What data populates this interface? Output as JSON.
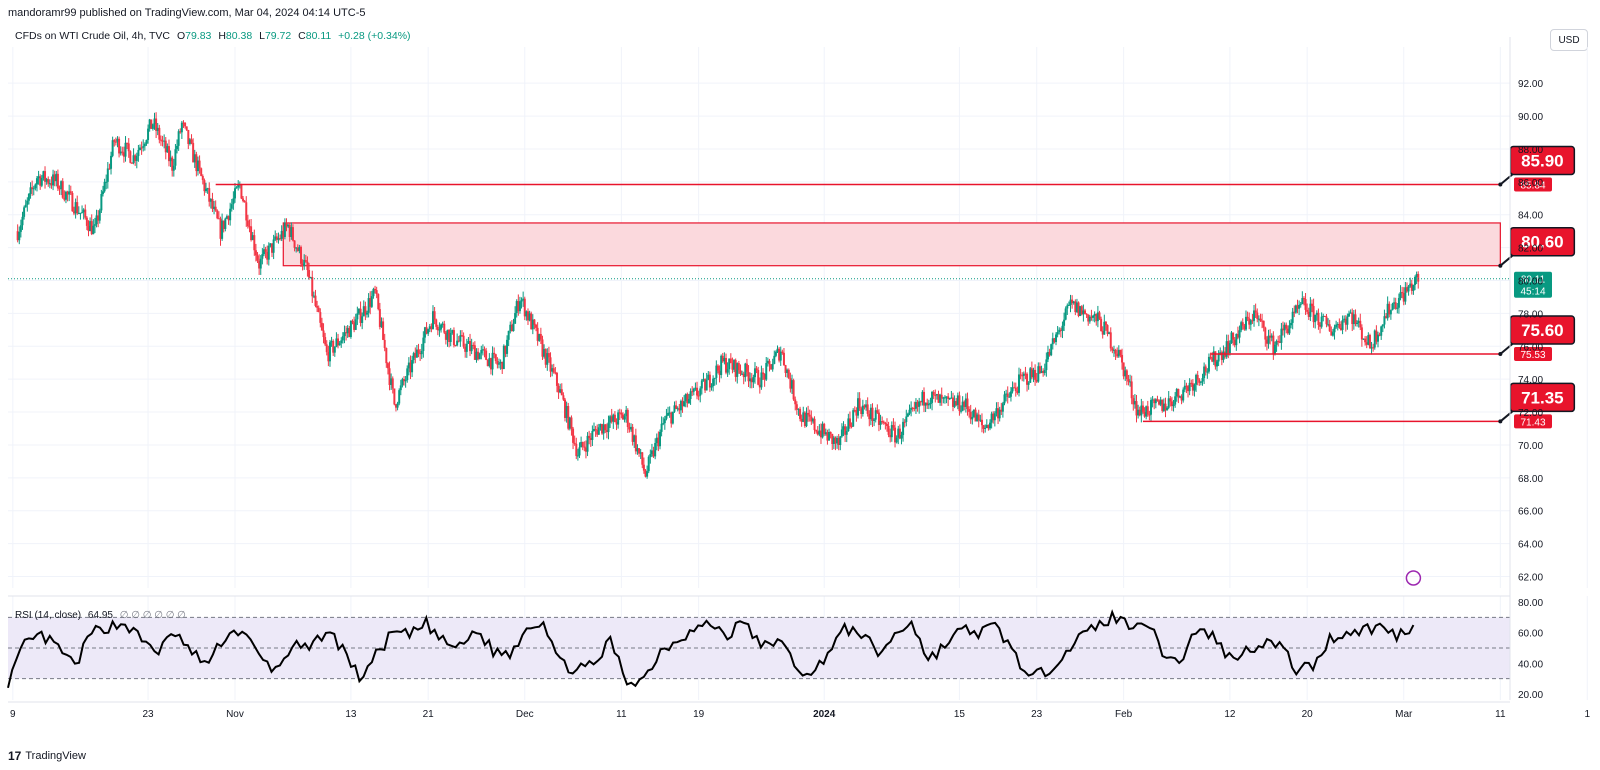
{
  "header": {
    "published_line": "mandoramr99 published on TradingView.com, Mar 04, 2024 04:14 UTC-5"
  },
  "legend": {
    "symbol": "CFDs on WTI Crude Oil, 4h, TVC",
    "open_label": "O",
    "open": "79.83",
    "high_label": "H",
    "high": "80.38",
    "low_label": "L",
    "low": "79.72",
    "close_label": "C",
    "close": "80.11",
    "change": "+0.28 (+0.34%)"
  },
  "currency": "USD",
  "rsi_legend": {
    "label": "RSI (14, close)",
    "value": "64.95",
    "extras": "∅ ∅ ∅ ∅ ∅ ∅"
  },
  "footer": {
    "brand": "TradingView",
    "logo": "17"
  },
  "colors": {
    "up": "#089981",
    "down": "#f23645",
    "level": "#e8142c",
    "zone_fill": "#fbd9dd",
    "rsi_band": "#ede9f8",
    "rsi_line": "#000000"
  },
  "chart_data": {
    "type": "candlestick",
    "price_axis": {
      "min": 62,
      "max": 94,
      "ticks": [
        "62.00",
        "64.00",
        "66.00",
        "68.00",
        "70.00",
        "72.00",
        "74.00",
        "76.00",
        "78.00",
        "80.00",
        "82.00",
        "84.00",
        "86.00",
        "88.00",
        "90.00",
        "92.00"
      ]
    },
    "time_axis": {
      "ticks": [
        "9",
        "23",
        "Nov",
        "13",
        "21",
        "Dec",
        "11",
        "19",
        "2024",
        "15",
        "23",
        "Feb",
        "12",
        "20",
        "Mar",
        "11",
        "1"
      ]
    },
    "price_path_keypoints": [
      {
        "t": "2023-10-09",
        "close": 83.0
      },
      {
        "t": "2023-10-11",
        "close": 86.3
      },
      {
        "t": "2023-10-13",
        "close": 86.0
      },
      {
        "t": "2023-10-17",
        "close": 83.0
      },
      {
        "t": "2023-10-19",
        "close": 88.5
      },
      {
        "t": "2023-10-21",
        "close": 87.5
      },
      {
        "t": "2023-10-23",
        "close": 89.6
      },
      {
        "t": "2023-10-25",
        "close": 87.0
      },
      {
        "t": "2023-10-26",
        "close": 89.5
      },
      {
        "t": "2023-10-30",
        "close": 83.0
      },
      {
        "t": "2023-11-01",
        "close": 85.8
      },
      {
        "t": "2023-11-03",
        "close": 81.0
      },
      {
        "t": "2023-11-06",
        "close": 83.3
      },
      {
        "t": "2023-11-08",
        "close": 80.5
      },
      {
        "t": "2023-11-10",
        "close": 75.5
      },
      {
        "t": "2023-11-13",
        "close": 77.5
      },
      {
        "t": "2023-11-15",
        "close": 79.2
      },
      {
        "t": "2023-11-17",
        "close": 72.5
      },
      {
        "t": "2023-11-21",
        "close": 77.8
      },
      {
        "t": "2023-11-23",
        "close": 76.5
      },
      {
        "t": "2023-11-28",
        "close": 74.8
      },
      {
        "t": "2023-11-30",
        "close": 79.0
      },
      {
        "t": "2023-12-04",
        "close": 73.5
      },
      {
        "t": "2023-12-06",
        "close": 69.5
      },
      {
        "t": "2023-12-08",
        "close": 71.0
      },
      {
        "t": "2023-12-11",
        "close": 71.8
      },
      {
        "t": "2023-12-13",
        "close": 68.2
      },
      {
        "t": "2023-12-15",
        "close": 71.5
      },
      {
        "t": "2023-12-19",
        "close": 73.5
      },
      {
        "t": "2023-12-21",
        "close": 75.0
      },
      {
        "t": "2023-12-25",
        "close": 74.0
      },
      {
        "t": "2023-12-27",
        "close": 75.8
      },
      {
        "t": "2023-12-29",
        "close": 71.8
      },
      {
        "t": "2024-01-02",
        "close": 70.0
      },
      {
        "t": "2024-01-04",
        "close": 72.5
      },
      {
        "t": "2024-01-08",
        "close": 70.5
      },
      {
        "t": "2024-01-11",
        "close": 73.0
      },
      {
        "t": "2024-01-13",
        "close": 72.5
      },
      {
        "t": "2024-01-15",
        "close": 72.5
      },
      {
        "t": "2024-01-17",
        "close": 71.0
      },
      {
        "t": "2024-01-21",
        "close": 74.0
      },
      {
        "t": "2024-01-23",
        "close": 74.5
      },
      {
        "t": "2024-01-26",
        "close": 78.5
      },
      {
        "t": "2024-01-29",
        "close": 77.5
      },
      {
        "t": "2024-01-31",
        "close": 75.5
      },
      {
        "t": "2024-02-02",
        "close": 72.0
      },
      {
        "t": "2024-02-05",
        "close": 72.5
      },
      {
        "t": "2024-02-08",
        "close": 74.0
      },
      {
        "t": "2024-02-12",
        "close": 76.5
      },
      {
        "t": "2024-02-14",
        "close": 78.0
      },
      {
        "t": "2024-02-16",
        "close": 76.0
      },
      {
        "t": "2024-02-19",
        "close": 78.5
      },
      {
        "t": "2024-02-22",
        "close": 77.0
      },
      {
        "t": "2024-02-24",
        "close": 78.0
      },
      {
        "t": "2024-02-26",
        "close": 76.0
      },
      {
        "t": "2024-02-28",
        "close": 78.3
      },
      {
        "t": "2024-03-01",
        "close": 79.5
      },
      {
        "t": "2024-03-02",
        "close": 80.11
      }
    ],
    "levels": [
      {
        "label": "85.90",
        "axis_value": 85.84,
        "axis_label": "85.84",
        "from": "2023-10-30"
      },
      {
        "label": "80.60",
        "axis_value": 80.9,
        "from": "2023-11-06"
      },
      {
        "label": "75.60",
        "axis_value": 75.53,
        "axis_label": "75.53",
        "from": "2024-02-10"
      },
      {
        "label": "71.35",
        "axis_value": 71.43,
        "axis_label": "71.43",
        "from": "2024-02-03"
      }
    ],
    "zone": {
      "from": "2023-11-06",
      "to": "2024-03-11",
      "low": 80.9,
      "high": 83.5
    },
    "last_price": {
      "value": "80.11",
      "countdown": "45:14"
    },
    "rsi": {
      "ticks": [
        "20.00",
        "40.00",
        "60.00",
        "80.00"
      ],
      "band": [
        30,
        70
      ],
      "ylim": [
        16,
        84
      ],
      "keypoints": [
        28,
        52,
        58,
        50,
        38,
        60,
        64,
        66,
        55,
        48,
        60,
        46,
        40,
        58,
        62,
        44,
        35,
        52,
        48,
        62,
        50,
        30,
        45,
        60,
        58,
        66,
        54,
        50,
        62,
        48,
        46,
        64,
        68,
        40,
        36,
        38,
        55,
        28,
        30,
        48,
        56,
        62,
        66,
        58,
        68,
        50,
        56,
        40,
        30,
        48,
        62,
        60,
        46,
        58,
        68,
        42,
        52,
        62,
        60,
        64,
        50,
        30,
        34,
        46,
        56,
        64,
        70,
        66,
        68,
        48,
        40,
        62,
        58,
        44,
        48,
        54,
        52,
        36,
        38,
        56,
        60,
        62,
        64,
        58,
        65
      ],
      "last": "64.95"
    }
  }
}
